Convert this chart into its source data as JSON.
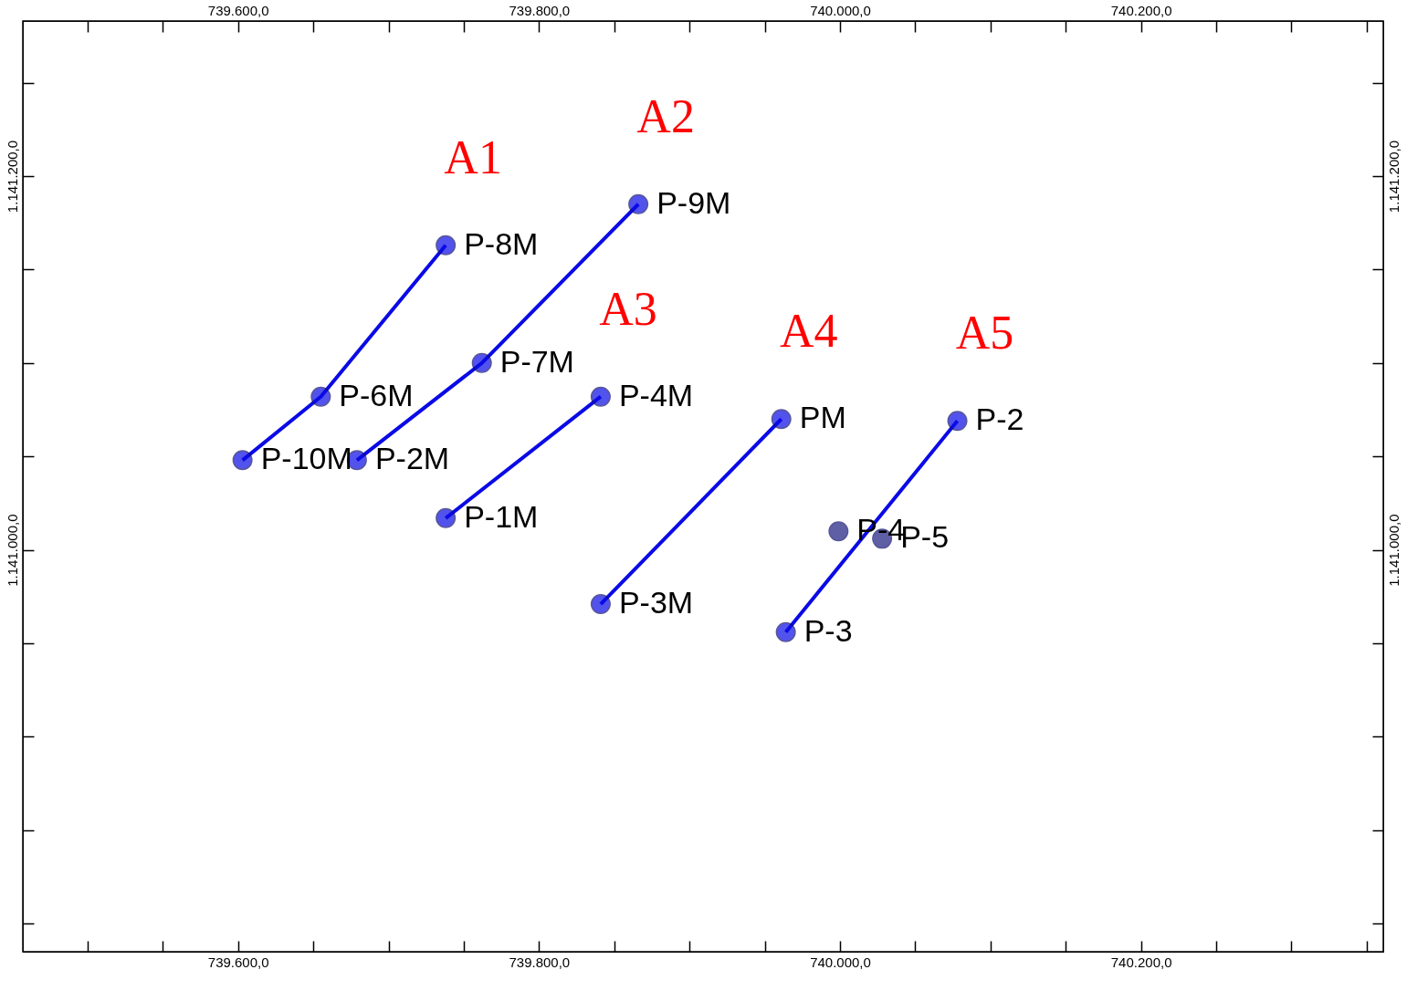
{
  "chart_data": {
    "type": "line",
    "xlim": [
      739457,
      740361
    ],
    "ylim": [
      1140785,
      1141283
    ],
    "xticks": [
      {
        "value": 739500,
        "label": null
      },
      {
        "value": 739550,
        "label": null
      },
      {
        "value": 739600,
        "label": "739.600,0"
      },
      {
        "value": 739650,
        "label": null
      },
      {
        "value": 739700,
        "label": null
      },
      {
        "value": 739750,
        "label": null
      },
      {
        "value": 739800,
        "label": "739.800,0"
      },
      {
        "value": 739850,
        "label": null
      },
      {
        "value": 739900,
        "label": null
      },
      {
        "value": 739950,
        "label": null
      },
      {
        "value": 740000,
        "label": "740.000,0"
      },
      {
        "value": 740050,
        "label": null
      },
      {
        "value": 740100,
        "label": null
      },
      {
        "value": 740150,
        "label": null
      },
      {
        "value": 740200,
        "label": "740.200,0"
      },
      {
        "value": 740250,
        "label": null
      },
      {
        "value": 740300,
        "label": null
      },
      {
        "value": 740350,
        "label": null
      }
    ],
    "x2lim": [
      739457,
      740361
    ],
    "x2ticks": [
      {
        "value": 739500,
        "label": null
      },
      {
        "value": 739550,
        "label": null
      },
      {
        "value": 739600,
        "label": "739.600,0"
      },
      {
        "value": 739650,
        "label": null
      },
      {
        "value": 739700,
        "label": null
      },
      {
        "value": 739750,
        "label": null
      },
      {
        "value": 739800,
        "label": "739.800,0"
      },
      {
        "value": 739850,
        "label": null
      },
      {
        "value": 739900,
        "label": null
      },
      {
        "value": 739950,
        "label": null
      },
      {
        "value": 740000,
        "label": "740.000,0"
      },
      {
        "value": 740050,
        "label": null
      },
      {
        "value": 740100,
        "label": null
      },
      {
        "value": 740150,
        "label": null
      },
      {
        "value": 740200,
        "label": "740.200,0"
      },
      {
        "value": 740250,
        "label": null
      },
      {
        "value": 740300,
        "label": null
      },
      {
        "value": 740350,
        "label": null
      }
    ],
    "yticks": [
      {
        "value": 1140800,
        "label": null
      },
      {
        "value": 1140850,
        "label": null
      },
      {
        "value": 1140900,
        "label": null
      },
      {
        "value": 1140950,
        "label": null
      },
      {
        "value": 1141000,
        "label": "1.141.000,0"
      },
      {
        "value": 1141050,
        "label": null
      },
      {
        "value": 1141100,
        "label": null
      },
      {
        "value": 1141150,
        "label": null
      },
      {
        "value": 1141200,
        "label": "1.141.200,0"
      },
      {
        "value": 1141250,
        "label": null
      }
    ],
    "y2lim": [
      1140785,
      1141283
    ],
    "y2ticks": [
      {
        "value": 1140800,
        "label": null
      },
      {
        "value": 1140850,
        "label": null
      },
      {
        "value": 1140900,
        "label": null
      },
      {
        "value": 1140950,
        "label": null
      },
      {
        "value": 1141000,
        "label": "1.141.000,0"
      },
      {
        "value": 1141050,
        "label": null
      },
      {
        "value": 1141100,
        "label": null
      },
      {
        "value": 1141150,
        "label": null
      },
      {
        "value": 1141200,
        "label": "1.141.200,0"
      },
      {
        "value": 1141250,
        "label": null
      }
    ],
    "grid": false,
    "legend": false,
    "marker": "circle",
    "line_style": "solid",
    "series": [
      {
        "name": "A1",
        "type": "line",
        "color": "#0a0ae6",
        "x": [
          739603,
          739655,
          739738
        ],
        "values": [
          1141048,
          1141082,
          1141163
        ],
        "value_labels": [
          "P-10M",
          "P-6M",
          "P-8M"
        ]
      },
      {
        "name": "A2",
        "type": "line",
        "color": "#0a0ae6",
        "x": [
          739679,
          739762,
          739866
        ],
        "values": [
          1141048,
          1141100,
          1141185
        ],
        "value_labels": [
          "P-2M",
          "P-7M",
          "P-9M"
        ]
      },
      {
        "name": "A3",
        "type": "line",
        "color": "#0a0ae6",
        "x": [
          739738,
          739841
        ],
        "values": [
          1141017,
          1141082
        ],
        "value_labels": [
          "P-1M",
          "P-4M"
        ]
      },
      {
        "name": "A4",
        "type": "line",
        "color": "#0a0ae6",
        "x": [
          739841,
          739961
        ],
        "values": [
          1140971,
          1141070
        ],
        "value_labels": [
          "P-3M",
          "PM"
        ]
      },
      {
        "name": "A5",
        "type": "line",
        "color": "#0a0ae6",
        "x": [
          739964,
          740078
        ],
        "values": [
          1140956,
          1141069
        ],
        "value_labels": [
          "P-3",
          "P-2"
        ]
      },
      {
        "type": "scatter",
        "color": "#1c1c80",
        "x": [
          739999,
          740028
        ],
        "values": [
          1141010,
          1141006
        ],
        "value_labels": [
          "P-4",
          "P-5"
        ]
      }
    ]
  }
}
